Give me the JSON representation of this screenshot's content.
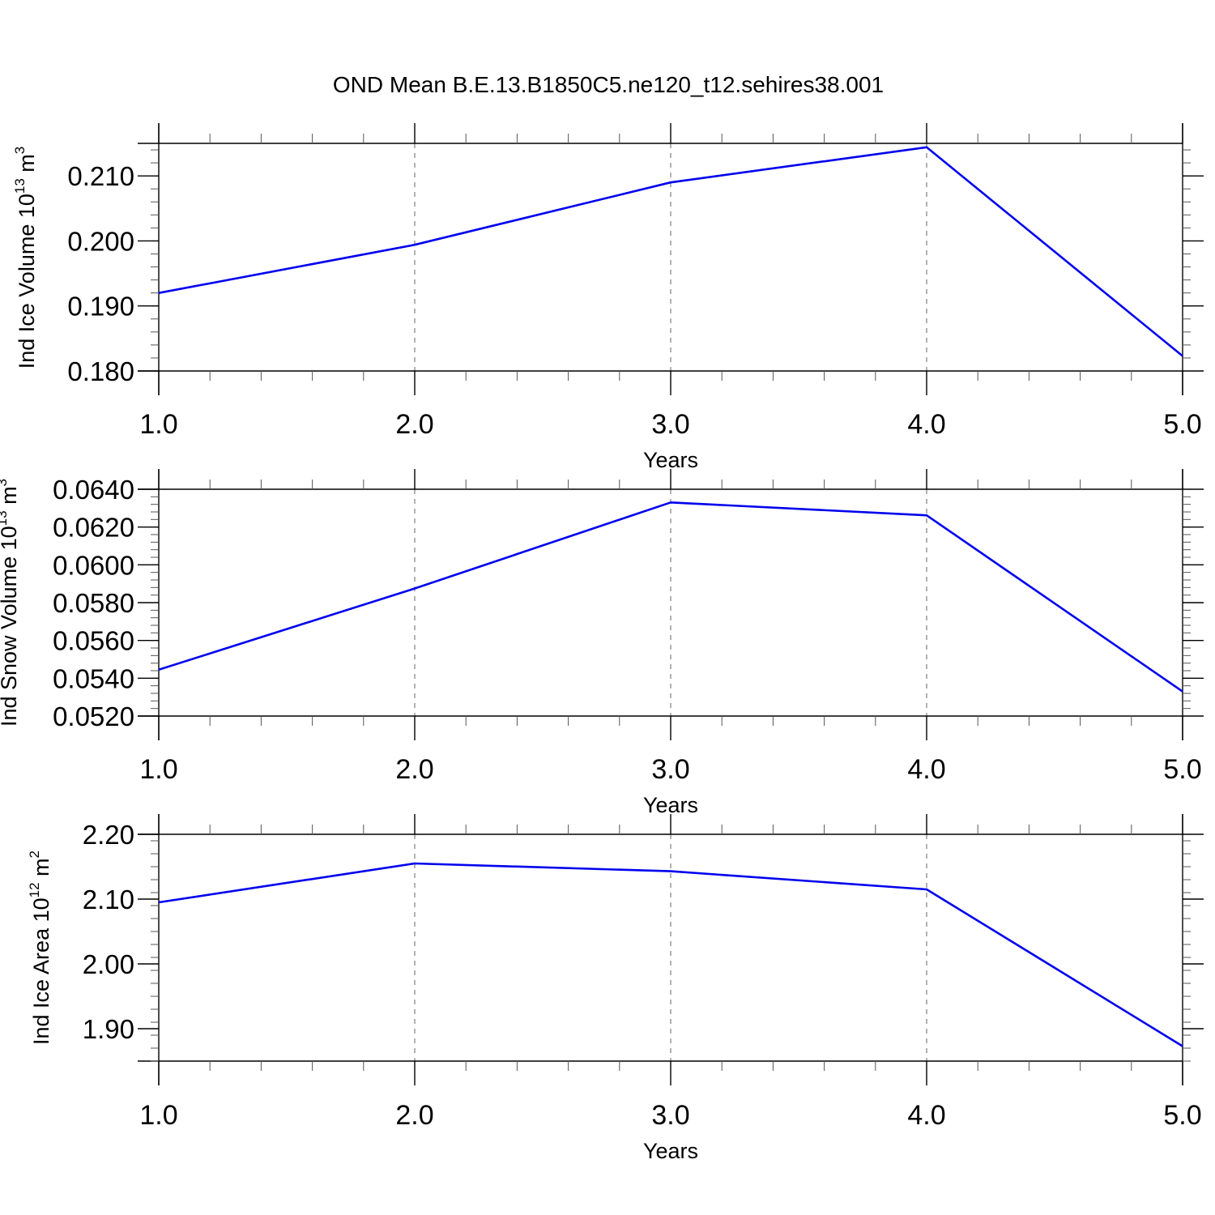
{
  "title": "OND Mean B.E.13.B1850C5.ne120_t12.sehires38.001",
  "line_color": "#0000ee",
  "chart_data": [
    {
      "type": "line",
      "xlabel": "Years",
      "ylabel_main": "Ind Ice Volume 10",
      "ylabel_exp": "13",
      "ylabel_unit": " m",
      "ylabel_unit_exp": "3",
      "xlim": [
        1.0,
        5.0
      ],
      "ylim": [
        0.18,
        0.215
      ],
      "xticks": [
        "1.0",
        "2.0",
        "3.0",
        "4.0",
        "5.0"
      ],
      "yticks": [
        {
          "value": 0.18,
          "label": "0.180"
        },
        {
          "value": 0.19,
          "label": "0.190"
        },
        {
          "value": 0.2,
          "label": "0.200"
        },
        {
          "value": 0.21,
          "label": "0.210"
        }
      ],
      "yminor_step": 0.002,
      "x": [
        1.0,
        2.0,
        3.0,
        4.0,
        5.0
      ],
      "y": [
        0.192,
        0.1994,
        0.209,
        0.2144,
        0.1823
      ]
    },
    {
      "type": "line",
      "xlabel": "Years",
      "ylabel_main": "Ind Snow Volume 10",
      "ylabel_exp": "13",
      "ylabel_unit": " m",
      "ylabel_unit_exp": "3",
      "xlim": [
        1.0,
        5.0
      ],
      "ylim": [
        0.052,
        0.064
      ],
      "xticks": [
        "1.0",
        "2.0",
        "3.0",
        "4.0",
        "5.0"
      ],
      "yticks": [
        {
          "value": 0.052,
          "label": "0.0520"
        },
        {
          "value": 0.054,
          "label": "0.0540"
        },
        {
          "value": 0.056,
          "label": "0.0560"
        },
        {
          "value": 0.058,
          "label": "0.0580"
        },
        {
          "value": 0.06,
          "label": "0.0600"
        },
        {
          "value": 0.062,
          "label": "0.0620"
        },
        {
          "value": 0.064,
          "label": "0.0640"
        }
      ],
      "yminor_step": 0.0004,
      "x": [
        1.0,
        2.0,
        3.0,
        4.0,
        5.0
      ],
      "y": [
        0.05445,
        0.05875,
        0.0633,
        0.06262,
        0.0533
      ]
    },
    {
      "type": "line",
      "xlabel": "Years",
      "ylabel_main": "Ind Ice Area 10",
      "ylabel_exp": "12",
      "ylabel_unit": " m",
      "ylabel_unit_exp": "2",
      "xlim": [
        1.0,
        5.0
      ],
      "ylim": [
        1.85,
        2.2
      ],
      "xticks": [
        "1.0",
        "2.0",
        "3.0",
        "4.0",
        "5.0"
      ],
      "yticks": [
        {
          "value": 1.9,
          "label": "1.90"
        },
        {
          "value": 2.0,
          "label": "2.00"
        },
        {
          "value": 2.1,
          "label": "2.10"
        },
        {
          "value": 2.2,
          "label": "2.20"
        }
      ],
      "yminor_step": 0.02,
      "x": [
        1.0,
        2.0,
        3.0,
        4.0,
        5.0
      ],
      "y": [
        2.095,
        2.155,
        2.143,
        2.115,
        1.873
      ]
    }
  ]
}
